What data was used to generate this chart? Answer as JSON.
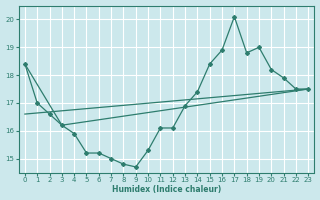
{
  "xlabel": "Humidex (Indice chaleur)",
  "xlim": [
    -0.5,
    23.5
  ],
  "ylim": [
    14.5,
    20.5
  ],
  "yticks": [
    15,
    16,
    17,
    18,
    19,
    20
  ],
  "xticks": [
    0,
    1,
    2,
    3,
    4,
    5,
    6,
    7,
    8,
    9,
    10,
    11,
    12,
    13,
    14,
    15,
    16,
    17,
    18,
    19,
    20,
    21,
    22,
    23
  ],
  "background_color": "#cce8ec",
  "grid_color": "#ffffff",
  "line_color": "#2e7d6e",
  "line1": {
    "x": [
      0,
      1,
      2,
      3,
      4,
      5,
      6,
      7,
      8,
      9,
      10,
      11,
      12,
      13,
      14,
      15,
      16,
      17,
      18,
      19,
      20,
      21,
      22,
      23
    ],
    "y": [
      18.4,
      17.0,
      16.6,
      16.2,
      15.9,
      15.2,
      15.2,
      15.0,
      14.8,
      14.7,
      15.3,
      16.1,
      16.1,
      16.9,
      17.4,
      18.4,
      18.9,
      20.1,
      18.8,
      19.0,
      18.2,
      17.9,
      17.5,
      17.5
    ]
  },
  "line2": {
    "x": [
      0,
      3,
      23
    ],
    "y": [
      18.4,
      16.2,
      17.5
    ]
  },
  "line3": {
    "x": [
      0,
      23
    ],
    "y": [
      16.6,
      17.5
    ]
  }
}
